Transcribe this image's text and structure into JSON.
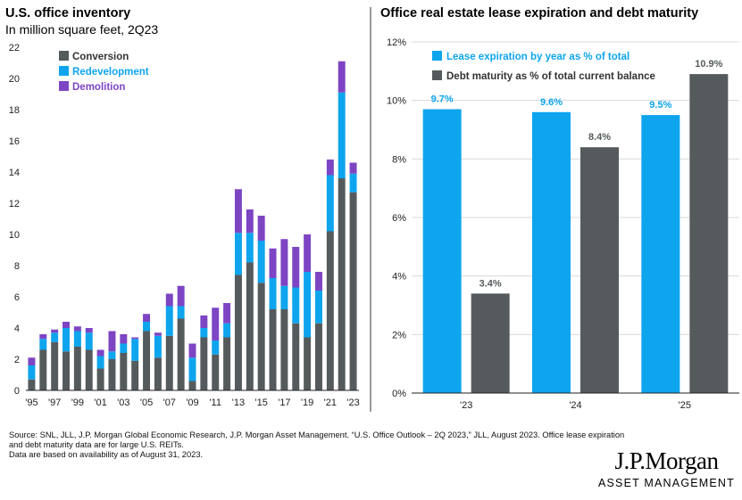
{
  "chart_data": [
    {
      "type": "bar",
      "stacked": true,
      "title": "U.S. office inventory",
      "subtitle": "In million square feet, 2Q23",
      "ylim": [
        0,
        22
      ],
      "yticks": [
        "0",
        "2",
        "4",
        "6",
        "8",
        "10",
        "12",
        "14",
        "16",
        "18",
        "20",
        "22"
      ],
      "categories": [
        "'95",
        "'96",
        "'97",
        "'98",
        "'99",
        "'00",
        "'01",
        "'02",
        "'03",
        "'04",
        "'05",
        "'06",
        "'07",
        "'08",
        "'09",
        "'10",
        "'11",
        "'12",
        "'13",
        "'14",
        "'15",
        "'16",
        "'17",
        "'18",
        "'19",
        "'20",
        "'21",
        "'22",
        "'23"
      ],
      "xtick_labels": [
        "'95",
        "'97",
        "'99",
        "'01",
        "'03",
        "'05",
        "'07",
        "'09",
        "'11",
        "'13",
        "'15",
        "'17",
        "'19",
        "'21",
        "'23"
      ],
      "legend_position": "top-left",
      "series": [
        {
          "name": "Conversion",
          "color": "#555a5c",
          "values": [
            0.7,
            2.6,
            3.1,
            2.5,
            2.8,
            2.6,
            1.4,
            2.0,
            2.4,
            1.9,
            3.8,
            2.1,
            3.5,
            4.6,
            0.6,
            3.4,
            2.3,
            3.4,
            7.4,
            8.2,
            6.9,
            5.2,
            5.2,
            4.3,
            3.4,
            4.3,
            10.2,
            13.6,
            12.7
          ]
        },
        {
          "name": "Redevelopment",
          "color": "#0ea5ee",
          "values": [
            0.9,
            0.7,
            0.6,
            1.5,
            1.0,
            1.1,
            0.8,
            0.5,
            0.6,
            1.4,
            0.6,
            1.4,
            1.9,
            0.8,
            1.5,
            0.6,
            0.9,
            0.9,
            2.7,
            1.9,
            2.7,
            2.0,
            1.5,
            2.3,
            4.2,
            2.1,
            3.6,
            5.5,
            1.2
          ]
        },
        {
          "name": "Demolition",
          "color": "#7d45c4",
          "values": [
            0.5,
            0.3,
            0.2,
            0.4,
            0.3,
            0.3,
            0.4,
            1.3,
            0.6,
            0.1,
            0.5,
            0.2,
            0.8,
            1.3,
            0.9,
            0.8,
            2.1,
            1.3,
            2.8,
            1.5,
            1.6,
            1.9,
            3.0,
            2.6,
            2.4,
            1.2,
            1.0,
            2.0,
            0.7
          ]
        }
      ]
    },
    {
      "type": "bar",
      "title": "Office real estate lease expiration and debt maturity",
      "categories": [
        "'23",
        "'24",
        "'25"
      ],
      "ylim": [
        0,
        12
      ],
      "yticks": [
        "0%",
        "2%",
        "4%",
        "6%",
        "8%",
        "10%",
        "12%"
      ],
      "legend_position": "top-left",
      "series": [
        {
          "name": "Lease expiration by year as % of total",
          "color": "#0ea5ee",
          "values": [
            9.7,
            9.6,
            9.5
          ],
          "labels": [
            "9.7%",
            "9.6%",
            "9.5%"
          ]
        },
        {
          "name": "Debt maturity as % of total current balance",
          "color": "#555a5c",
          "values": [
            3.4,
            8.4,
            10.9
          ],
          "labels": [
            "3.4%",
            "8.4%",
            "10.9%"
          ]
        }
      ]
    }
  ],
  "footnote": {
    "line1": "Source: SNL, JLL, J.P. Morgan Global Economic Research, J.P. Morgan Asset Management. “U.S. Office Outlook – 2Q 2023,” JLL, August 2023. Office lease expiration",
    "line2": "and debt maturity data are for large U.S. REITs.",
    "line3": "Data are based on availability as of August 31, 2023."
  },
  "logo": {
    "main": "J.P.Morgan",
    "sub": "ASSET MANAGEMENT"
  }
}
